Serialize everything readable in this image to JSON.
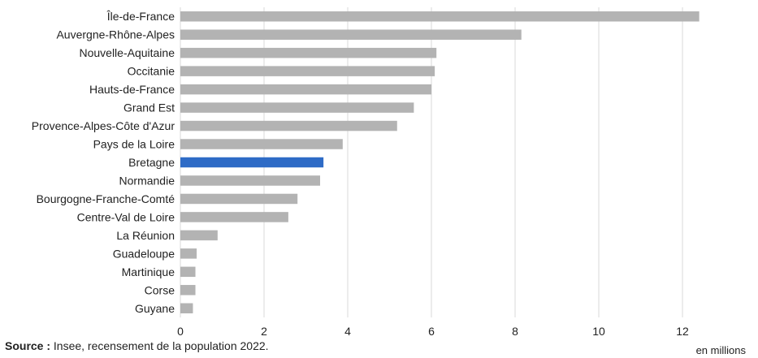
{
  "chart_data": {
    "type": "bar",
    "orientation": "horizontal",
    "categories": [
      "Île-de-France",
      "Auvergne-Rhône-Alpes",
      "Nouvelle-Aquitaine",
      "Occitanie",
      "Hauts-de-France",
      "Grand Est",
      "Provence-Alpes-Côte d'Azur",
      "Pays de la Loire",
      "Bretagne",
      "Normandie",
      "Bourgogne-Franche-Comté",
      "Centre-Val de Loire",
      "La Réunion",
      "Guadeloupe",
      "Martinique",
      "Corse",
      "Guyane"
    ],
    "values": [
      12.4,
      8.15,
      6.12,
      6.08,
      6.0,
      5.58,
      5.18,
      3.88,
      3.42,
      3.34,
      2.8,
      2.58,
      0.89,
      0.39,
      0.36,
      0.36,
      0.3
    ],
    "highlight": "Bretagne",
    "xlim": [
      0,
      13.3
    ],
    "xticks": [
      0,
      2,
      4,
      6,
      8,
      10,
      12
    ],
    "unit_label": "en millions",
    "grid": "vertical",
    "legend": "none",
    "colors": {
      "bar": "#b3b3b3",
      "highlight": "#2e6bc6",
      "grid": "#d9d9d9"
    }
  },
  "source": {
    "label": "Source :",
    "text": " Insee, recensement de la population 2022."
  }
}
